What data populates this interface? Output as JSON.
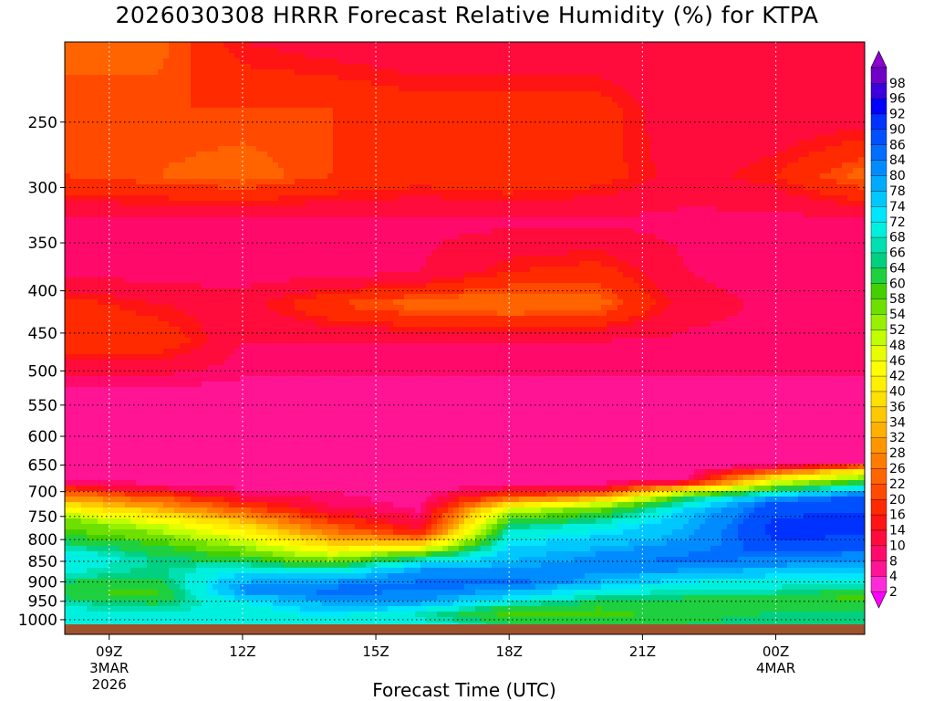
{
  "title": "2026030308 HRRR Forecast Relative Humidity (%) for KTPA",
  "x_axis_title": "Forecast Time (UTC)",
  "chart_data": {
    "type": "heatmap",
    "title": "2026030308 HRRR Forecast Relative Humidity (%) for KTPA",
    "xlabel": "Forecast Time (UTC)",
    "ylabel": "",
    "x_ticks": [
      {
        "label": "09Z",
        "sub1": "3MAR",
        "sub2": "2026",
        "hour": 9
      },
      {
        "label": "12Z",
        "sub1": "",
        "sub2": "",
        "hour": 12
      },
      {
        "label": "15Z",
        "sub1": "",
        "sub2": "",
        "hour": 15
      },
      {
        "label": "18Z",
        "sub1": "",
        "sub2": "",
        "hour": 18
      },
      {
        "label": "21Z",
        "sub1": "",
        "sub2": "",
        "hour": 21
      },
      {
        "label": "00Z",
        "sub1": "4MAR",
        "sub2": "",
        "hour": 24
      }
    ],
    "xlim_hours": [
      8,
      26
    ],
    "y_ticks": [
      250,
      300,
      350,
      400,
      450,
      500,
      550,
      600,
      650,
      700,
      750,
      800,
      850,
      900,
      950,
      1000
    ],
    "ylim": [
      200,
      1013
    ],
    "y_scale": "log pressure (mb), inverted",
    "grid": "dotted",
    "step": 6,
    "colorbar": {
      "levels": [
        2,
        4,
        8,
        10,
        14,
        16,
        20,
        22,
        26,
        28,
        32,
        34,
        36,
        40,
        42,
        46,
        48,
        52,
        54,
        58,
        60,
        64,
        66,
        68,
        72,
        74,
        78,
        80,
        84,
        86,
        90,
        92,
        96,
        98
      ],
      "colors": [
        "#ff00ff",
        "#ff2bd8",
        "#ff1493",
        "#ff0a6a",
        "#ff0b3c",
        "#ff1414",
        "#ff2a00",
        "#ff4a00",
        "#ff6400",
        "#ff7c00",
        "#ff9600",
        "#ffb000",
        "#ffc800",
        "#ffe000",
        "#fff000",
        "#ffff00",
        "#e6ff00",
        "#c0ff00",
        "#96f000",
        "#6ee000",
        "#44d000",
        "#1ed040",
        "#00d080",
        "#00e0b0",
        "#00f0e0",
        "#00e6ff",
        "#00c8ff",
        "#00aaff",
        "#008cff",
        "#006eff",
        "#0050ff",
        "#0032ff",
        "#0000ff",
        "#3c00dc",
        "#7000c8",
        "#9000d0"
      ]
    },
    "profiles": [
      {
        "hour": 8.0,
        "rh": [
          {
            "p": 200,
            "v": 24
          },
          {
            "p": 240,
            "v": 20
          },
          {
            "p": 290,
            "v": 20
          },
          {
            "p": 330,
            "v": 9
          },
          {
            "p": 380,
            "v": 9
          },
          {
            "p": 415,
            "v": 18
          },
          {
            "p": 460,
            "v": 20
          },
          {
            "p": 510,
            "v": 9
          },
          {
            "p": 560,
            "v": 6
          },
          {
            "p": 620,
            "v": 6
          },
          {
            "p": 660,
            "v": 6
          },
          {
            "p": 685,
            "v": 10
          },
          {
            "p": 700,
            "v": 22
          },
          {
            "p": 730,
            "v": 40
          },
          {
            "p": 760,
            "v": 56
          },
          {
            "p": 800,
            "v": 62
          },
          {
            "p": 840,
            "v": 73
          },
          {
            "p": 880,
            "v": 68
          },
          {
            "p": 920,
            "v": 60
          },
          {
            "p": 960,
            "v": 68
          },
          {
            "p": 1000,
            "v": 70
          },
          {
            "p": 1013,
            "v": 72
          }
        ]
      },
      {
        "hour": 10.0,
        "rh": [
          {
            "p": 200,
            "v": 24
          },
          {
            "p": 240,
            "v": 20
          },
          {
            "p": 290,
            "v": 22
          },
          {
            "p": 330,
            "v": 9
          },
          {
            "p": 380,
            "v": 8
          },
          {
            "p": 415,
            "v": 14
          },
          {
            "p": 460,
            "v": 20
          },
          {
            "p": 510,
            "v": 9
          },
          {
            "p": 560,
            "v": 6
          },
          {
            "p": 620,
            "v": 6
          },
          {
            "p": 660,
            "v": 6
          },
          {
            "p": 690,
            "v": 8
          },
          {
            "p": 710,
            "v": 22
          },
          {
            "p": 740,
            "v": 36
          },
          {
            "p": 770,
            "v": 50
          },
          {
            "p": 810,
            "v": 60
          },
          {
            "p": 850,
            "v": 66
          },
          {
            "p": 890,
            "v": 64
          },
          {
            "p": 930,
            "v": 58
          },
          {
            "p": 965,
            "v": 66
          },
          {
            "p": 1000,
            "v": 70
          },
          {
            "p": 1013,
            "v": 72
          }
        ]
      },
      {
        "hour": 12.0,
        "rh": [
          {
            "p": 200,
            "v": 14
          },
          {
            "p": 240,
            "v": 20
          },
          {
            "p": 290,
            "v": 24
          },
          {
            "p": 330,
            "v": 9
          },
          {
            "p": 380,
            "v": 8
          },
          {
            "p": 415,
            "v": 12
          },
          {
            "p": 460,
            "v": 10
          },
          {
            "p": 510,
            "v": 8
          },
          {
            "p": 560,
            "v": 6
          },
          {
            "p": 620,
            "v": 6
          },
          {
            "p": 660,
            "v": 6
          },
          {
            "p": 700,
            "v": 8
          },
          {
            "p": 730,
            "v": 20
          },
          {
            "p": 760,
            "v": 34
          },
          {
            "p": 800,
            "v": 48
          },
          {
            "p": 840,
            "v": 60
          },
          {
            "p": 880,
            "v": 74
          },
          {
            "p": 920,
            "v": 82
          },
          {
            "p": 960,
            "v": 70
          },
          {
            "p": 1000,
            "v": 70
          },
          {
            "p": 1013,
            "v": 72
          }
        ]
      },
      {
        "hour": 14.0,
        "rh": [
          {
            "p": 200,
            "v": 12
          },
          {
            "p": 240,
            "v": 20
          },
          {
            "p": 290,
            "v": 20
          },
          {
            "p": 330,
            "v": 9
          },
          {
            "p": 380,
            "v": 8
          },
          {
            "p": 415,
            "v": 20
          },
          {
            "p": 460,
            "v": 10
          },
          {
            "p": 510,
            "v": 8
          },
          {
            "p": 560,
            "v": 6
          },
          {
            "p": 620,
            "v": 6
          },
          {
            "p": 660,
            "v": 6
          },
          {
            "p": 700,
            "v": 8
          },
          {
            "p": 730,
            "v": 10
          },
          {
            "p": 770,
            "v": 22
          },
          {
            "p": 810,
            "v": 36
          },
          {
            "p": 850,
            "v": 56
          },
          {
            "p": 880,
            "v": 74
          },
          {
            "p": 920,
            "v": 86
          },
          {
            "p": 960,
            "v": 78
          },
          {
            "p": 1000,
            "v": 70
          },
          {
            "p": 1013,
            "v": 72
          }
        ]
      },
      {
        "hour": 16.0,
        "rh": [
          {
            "p": 200,
            "v": 10
          },
          {
            "p": 240,
            "v": 18
          },
          {
            "p": 290,
            "v": 18
          },
          {
            "p": 330,
            "v": 9
          },
          {
            "p": 380,
            "v": 10
          },
          {
            "p": 415,
            "v": 24
          },
          {
            "p": 460,
            "v": 10
          },
          {
            "p": 510,
            "v": 8
          },
          {
            "p": 560,
            "v": 6
          },
          {
            "p": 620,
            "v": 6
          },
          {
            "p": 660,
            "v": 6
          },
          {
            "p": 700,
            "v": 6
          },
          {
            "p": 740,
            "v": 8
          },
          {
            "p": 780,
            "v": 14
          },
          {
            "p": 810,
            "v": 36
          },
          {
            "p": 840,
            "v": 64
          },
          {
            "p": 870,
            "v": 80
          },
          {
            "p": 910,
            "v": 86
          },
          {
            "p": 950,
            "v": 80
          },
          {
            "p": 990,
            "v": 66
          },
          {
            "p": 1013,
            "v": 72
          }
        ]
      },
      {
        "hour": 18.0,
        "rh": [
          {
            "p": 200,
            "v": 10
          },
          {
            "p": 240,
            "v": 18
          },
          {
            "p": 290,
            "v": 20
          },
          {
            "p": 330,
            "v": 9
          },
          {
            "p": 380,
            "v": 16
          },
          {
            "p": 415,
            "v": 26
          },
          {
            "p": 460,
            "v": 10
          },
          {
            "p": 510,
            "v": 8
          },
          {
            "p": 560,
            "v": 6
          },
          {
            "p": 620,
            "v": 6
          },
          {
            "p": 660,
            "v": 6
          },
          {
            "p": 690,
            "v": 8
          },
          {
            "p": 710,
            "v": 22
          },
          {
            "p": 740,
            "v": 52
          },
          {
            "p": 780,
            "v": 68
          },
          {
            "p": 830,
            "v": 76
          },
          {
            "p": 870,
            "v": 80
          },
          {
            "p": 900,
            "v": 86
          },
          {
            "p": 940,
            "v": 74
          },
          {
            "p": 980,
            "v": 58
          },
          {
            "p": 1013,
            "v": 64
          }
        ]
      },
      {
        "hour": 20.0,
        "rh": [
          {
            "p": 200,
            "v": 10
          },
          {
            "p": 240,
            "v": 18
          },
          {
            "p": 290,
            "v": 18
          },
          {
            "p": 330,
            "v": 9
          },
          {
            "p": 380,
            "v": 18
          },
          {
            "p": 415,
            "v": 24
          },
          {
            "p": 460,
            "v": 10
          },
          {
            "p": 510,
            "v": 8
          },
          {
            "p": 560,
            "v": 6
          },
          {
            "p": 620,
            "v": 6
          },
          {
            "p": 660,
            "v": 6
          },
          {
            "p": 690,
            "v": 8
          },
          {
            "p": 705,
            "v": 24
          },
          {
            "p": 730,
            "v": 54
          },
          {
            "p": 770,
            "v": 70
          },
          {
            "p": 830,
            "v": 80
          },
          {
            "p": 860,
            "v": 82
          },
          {
            "p": 900,
            "v": 78
          },
          {
            "p": 940,
            "v": 66
          },
          {
            "p": 980,
            "v": 58
          },
          {
            "p": 1013,
            "v": 62
          }
        ]
      },
      {
        "hour": 22.0,
        "rh": [
          {
            "p": 200,
            "v": 10
          },
          {
            "p": 240,
            "v": 10
          },
          {
            "p": 290,
            "v": 12
          },
          {
            "p": 330,
            "v": 9
          },
          {
            "p": 380,
            "v": 10
          },
          {
            "p": 415,
            "v": 12
          },
          {
            "p": 460,
            "v": 9
          },
          {
            "p": 510,
            "v": 8
          },
          {
            "p": 560,
            "v": 6
          },
          {
            "p": 620,
            "v": 6
          },
          {
            "p": 660,
            "v": 6
          },
          {
            "p": 680,
            "v": 8
          },
          {
            "p": 690,
            "v": 30
          },
          {
            "p": 710,
            "v": 62
          },
          {
            "p": 740,
            "v": 76
          },
          {
            "p": 800,
            "v": 80
          },
          {
            "p": 850,
            "v": 86
          },
          {
            "p": 900,
            "v": 72
          },
          {
            "p": 940,
            "v": 64
          },
          {
            "p": 980,
            "v": 62
          },
          {
            "p": 1013,
            "v": 64
          }
        ]
      },
      {
        "hour": 24.0,
        "rh": [
          {
            "p": 200,
            "v": 10
          },
          {
            "p": 240,
            "v": 10
          },
          {
            "p": 290,
            "v": 16
          },
          {
            "p": 330,
            "v": 8
          },
          {
            "p": 380,
            "v": 8
          },
          {
            "p": 415,
            "v": 9
          },
          {
            "p": 460,
            "v": 9
          },
          {
            "p": 510,
            "v": 8
          },
          {
            "p": 560,
            "v": 6
          },
          {
            "p": 620,
            "v": 6
          },
          {
            "p": 650,
            "v": 6
          },
          {
            "p": 670,
            "v": 36
          },
          {
            "p": 690,
            "v": 56
          },
          {
            "p": 720,
            "v": 88
          },
          {
            "p": 780,
            "v": 92
          },
          {
            "p": 820,
            "v": 88
          },
          {
            "p": 860,
            "v": 80
          },
          {
            "p": 900,
            "v": 70
          },
          {
            "p": 940,
            "v": 64
          },
          {
            "p": 980,
            "v": 64
          },
          {
            "p": 1013,
            "v": 66
          }
        ]
      },
      {
        "hour": 26.0,
        "rh": [
          {
            "p": 200,
            "v": 10
          },
          {
            "p": 240,
            "v": 10
          },
          {
            "p": 290,
            "v": 24
          },
          {
            "p": 330,
            "v": 9
          },
          {
            "p": 380,
            "v": 8
          },
          {
            "p": 415,
            "v": 9
          },
          {
            "p": 460,
            "v": 9
          },
          {
            "p": 510,
            "v": 8
          },
          {
            "p": 560,
            "v": 6
          },
          {
            "p": 620,
            "v": 6
          },
          {
            "p": 645,
            "v": 6
          },
          {
            "p": 660,
            "v": 40
          },
          {
            "p": 680,
            "v": 60
          },
          {
            "p": 710,
            "v": 88
          },
          {
            "p": 780,
            "v": 92
          },
          {
            "p": 820,
            "v": 86
          },
          {
            "p": 860,
            "v": 78
          },
          {
            "p": 900,
            "v": 70
          },
          {
            "p": 940,
            "v": 58
          },
          {
            "p": 980,
            "v": 64
          },
          {
            "p": 1013,
            "v": 66
          }
        ]
      }
    ]
  }
}
